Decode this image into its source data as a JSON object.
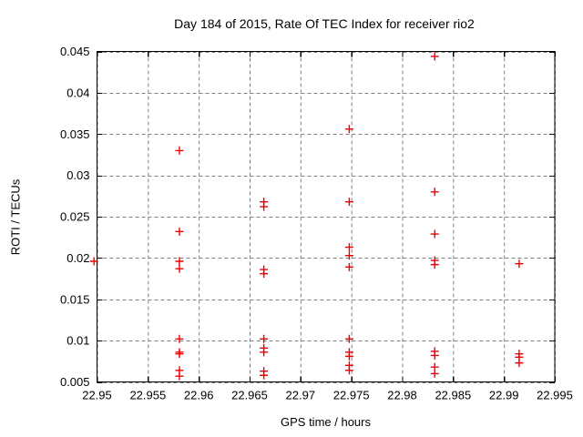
{
  "window": {
    "background": "#ffffff"
  },
  "chart_data": {
    "type": "scatter",
    "title": "Day 184 of 2015, Rate Of TEC Index for receiver rio2",
    "xlabel": "GPS time / hours",
    "ylabel": "ROTI / TECUs",
    "xlim": [
      22.95,
      22.995
    ],
    "ylim": [
      0.005,
      0.045
    ],
    "xticks": [
      22.95,
      22.955,
      22.96,
      22.965,
      22.97,
      22.975,
      22.98,
      22.985,
      22.99,
      22.995
    ],
    "xtick_labels": [
      "22.95",
      "22.955",
      "22.96",
      "22.965",
      "22.97",
      "22.975",
      "22.98",
      "22.985",
      "22.99",
      "22.995"
    ],
    "yticks": [
      0.005,
      0.01,
      0.015,
      0.02,
      0.025,
      0.03,
      0.035,
      0.04,
      0.045
    ],
    "ytick_labels": [
      "0.005",
      "0.01",
      "0.015",
      "0.02",
      "0.025",
      "0.03",
      "0.035",
      "0.04",
      "0.045"
    ],
    "grid": true,
    "legend_position": "none",
    "marker": {
      "shape": "plus",
      "color": "#ee0000",
      "size": 9,
      "stroke_width": 1.4
    },
    "grid_color": "#808080",
    "axis_color": "#000000",
    "series": [
      {
        "name": "ROTI",
        "points": [
          [
            22.9497,
            0.0196
          ],
          [
            22.9581,
            0.033
          ],
          [
            22.9581,
            0.0232
          ],
          [
            22.9581,
            0.0196
          ],
          [
            22.9581,
            0.0187
          ],
          [
            22.9581,
            0.0102
          ],
          [
            22.9581,
            0.0086
          ],
          [
            22.9581,
            0.0084
          ],
          [
            22.9581,
            0.0064
          ],
          [
            22.9581,
            0.0057
          ],
          [
            22.9664,
            0.0268
          ],
          [
            22.9664,
            0.0262
          ],
          [
            22.9664,
            0.0186
          ],
          [
            22.9664,
            0.0181
          ],
          [
            22.9664,
            0.0102
          ],
          [
            22.9664,
            0.0091
          ],
          [
            22.9664,
            0.0086
          ],
          [
            22.9664,
            0.0063
          ],
          [
            22.9664,
            0.0058
          ],
          [
            22.9748,
            0.0356
          ],
          [
            22.9748,
            0.0268
          ],
          [
            22.9748,
            0.0213
          ],
          [
            22.9748,
            0.0203
          ],
          [
            22.9748,
            0.0189
          ],
          [
            22.9748,
            0.0102
          ],
          [
            22.9748,
            0.0086
          ],
          [
            22.9748,
            0.0081
          ],
          [
            22.9748,
            0.007
          ],
          [
            22.9748,
            0.0064
          ],
          [
            22.9832,
            0.0444
          ],
          [
            22.9832,
            0.028
          ],
          [
            22.9832,
            0.0229
          ],
          [
            22.9832,
            0.0197
          ],
          [
            22.9832,
            0.0192
          ],
          [
            22.9832,
            0.0087
          ],
          [
            22.9832,
            0.0082
          ],
          [
            22.9832,
            0.0068
          ],
          [
            22.9832,
            0.006
          ],
          [
            22.9915,
            0.0193
          ],
          [
            22.9915,
            0.0084
          ],
          [
            22.9915,
            0.008
          ],
          [
            22.9915,
            0.0073
          ]
        ]
      }
    ]
  }
}
